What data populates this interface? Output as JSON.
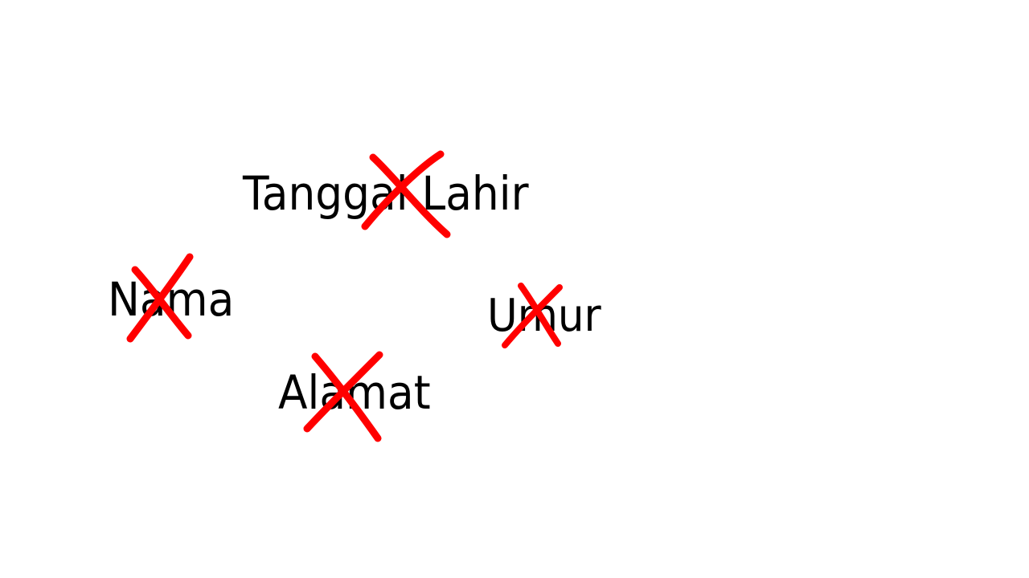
{
  "words": {
    "tanggal_lahir": "Tanggal Lahir",
    "nama": "Nama",
    "umur": "Umur",
    "alamat": "Alamat"
  },
  "colors": {
    "text": "#000000",
    "cross": "#ff0000",
    "background": "#ffffff"
  },
  "crossed_out": [
    "Tanggal Lahir",
    "Nama",
    "Umur",
    "Alamat"
  ]
}
